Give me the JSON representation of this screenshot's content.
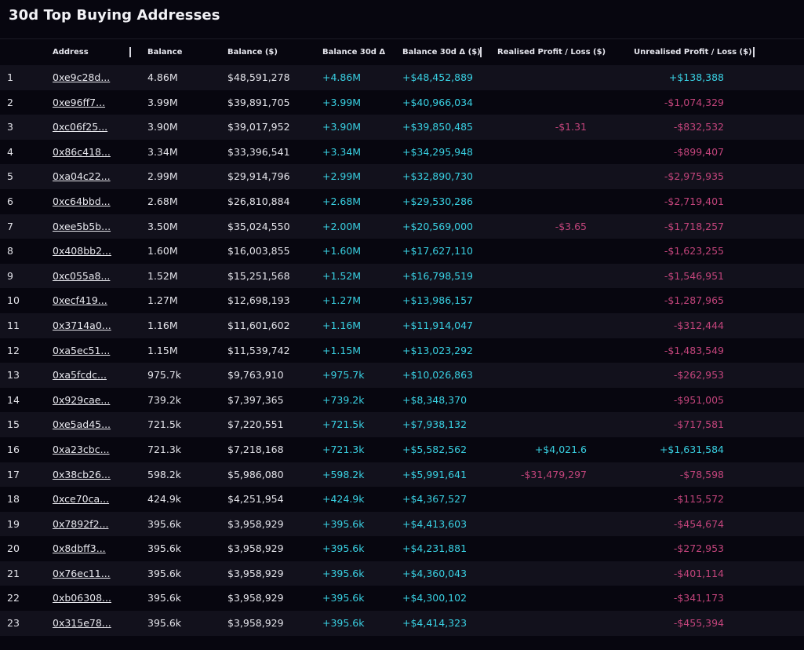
{
  "title": "30d Top Buying Addresses",
  "columns": {
    "address": "Address",
    "balance": "Balance",
    "balance_usd": "Balance ($)",
    "balance_30d": "Balance 30d Δ",
    "balance_30d_usd": "Balance 30d Δ ($)",
    "realised": "Realised Profit / Loss ($)",
    "unrealised": "Unrealised Profit / Loss ($)"
  },
  "colors": {
    "positive": "#39d1e3",
    "negative": "#c2447b",
    "background": "#07060f",
    "row_alt": "#12111c"
  },
  "rows": [
    {
      "idx": "1",
      "address": "0xe9c28d...",
      "balance": "4.86M",
      "balance_usd": "$48,591,278",
      "d30": "+4.86M",
      "d30_usd": "+$48,452,889",
      "realised": "",
      "unrealised": "+$138,388"
    },
    {
      "idx": "2",
      "address": "0xe96ff7...",
      "balance": "3.99M",
      "balance_usd": "$39,891,705",
      "d30": "+3.99M",
      "d30_usd": "+$40,966,034",
      "realised": "",
      "unrealised": "-$1,074,329"
    },
    {
      "idx": "3",
      "address": "0xc06f25...",
      "balance": "3.90M",
      "balance_usd": "$39,017,952",
      "d30": "+3.90M",
      "d30_usd": "+$39,850,485",
      "realised": "-$1.31",
      "unrealised": "-$832,532"
    },
    {
      "idx": "4",
      "address": "0x86c418...",
      "balance": "3.34M",
      "balance_usd": "$33,396,541",
      "d30": "+3.34M",
      "d30_usd": "+$34,295,948",
      "realised": "",
      "unrealised": "-$899,407"
    },
    {
      "idx": "5",
      "address": "0xa04c22...",
      "balance": "2.99M",
      "balance_usd": "$29,914,796",
      "d30": "+2.99M",
      "d30_usd": "+$32,890,730",
      "realised": "",
      "unrealised": "-$2,975,935"
    },
    {
      "idx": "6",
      "address": "0xc64bbd...",
      "balance": "2.68M",
      "balance_usd": "$26,810,884",
      "d30": "+2.68M",
      "d30_usd": "+$29,530,286",
      "realised": "",
      "unrealised": "-$2,719,401"
    },
    {
      "idx": "7",
      "address": "0xee5b5b...",
      "balance": "3.50M",
      "balance_usd": "$35,024,550",
      "d30": "+2.00M",
      "d30_usd": "+$20,569,000",
      "realised": "-$3.65",
      "unrealised": "-$1,718,257"
    },
    {
      "idx": "8",
      "address": "0x408bb2...",
      "balance": "1.60M",
      "balance_usd": "$16,003,855",
      "d30": "+1.60M",
      "d30_usd": "+$17,627,110",
      "realised": "",
      "unrealised": "-$1,623,255"
    },
    {
      "idx": "9",
      "address": "0xc055a8...",
      "balance": "1.52M",
      "balance_usd": "$15,251,568",
      "d30": "+1.52M",
      "d30_usd": "+$16,798,519",
      "realised": "",
      "unrealised": "-$1,546,951"
    },
    {
      "idx": "10",
      "address": "0xecf419...",
      "balance": "1.27M",
      "balance_usd": "$12,698,193",
      "d30": "+1.27M",
      "d30_usd": "+$13,986,157",
      "realised": "",
      "unrealised": "-$1,287,965"
    },
    {
      "idx": "11",
      "address": "0x3714a0...",
      "balance": "1.16M",
      "balance_usd": "$11,601,602",
      "d30": "+1.16M",
      "d30_usd": "+$11,914,047",
      "realised": "",
      "unrealised": "-$312,444"
    },
    {
      "idx": "12",
      "address": "0xa5ec51...",
      "balance": "1.15M",
      "balance_usd": "$11,539,742",
      "d30": "+1.15M",
      "d30_usd": "+$13,023,292",
      "realised": "",
      "unrealised": "-$1,483,549"
    },
    {
      "idx": "13",
      "address": "0xa5fcdc...",
      "balance": "975.7k",
      "balance_usd": "$9,763,910",
      "d30": "+975.7k",
      "d30_usd": "+$10,026,863",
      "realised": "",
      "unrealised": "-$262,953"
    },
    {
      "idx": "14",
      "address": "0x929cae...",
      "balance": "739.2k",
      "balance_usd": "$7,397,365",
      "d30": "+739.2k",
      "d30_usd": "+$8,348,370",
      "realised": "",
      "unrealised": "-$951,005"
    },
    {
      "idx": "15",
      "address": "0xe5ad45...",
      "balance": "721.5k",
      "balance_usd": "$7,220,551",
      "d30": "+721.5k",
      "d30_usd": "+$7,938,132",
      "realised": "",
      "unrealised": "-$717,581"
    },
    {
      "idx": "16",
      "address": "0xa23cbc...",
      "balance": "721.3k",
      "balance_usd": "$7,218,168",
      "d30": "+721.3k",
      "d30_usd": "+$5,582,562",
      "realised": "+$4,021.6",
      "unrealised": "+$1,631,584"
    },
    {
      "idx": "17",
      "address": "0x38cb26...",
      "balance": "598.2k",
      "balance_usd": "$5,986,080",
      "d30": "+598.2k",
      "d30_usd": "+$5,991,641",
      "realised": "-$31,479,297",
      "unrealised": "-$78,598"
    },
    {
      "idx": "18",
      "address": "0xce70ca...",
      "balance": "424.9k",
      "balance_usd": "$4,251,954",
      "d30": "+424.9k",
      "d30_usd": "+$4,367,527",
      "realised": "",
      "unrealised": "-$115,572"
    },
    {
      "idx": "19",
      "address": "0x7892f2...",
      "balance": "395.6k",
      "balance_usd": "$3,958,929",
      "d30": "+395.6k",
      "d30_usd": "+$4,413,603",
      "realised": "",
      "unrealised": "-$454,674"
    },
    {
      "idx": "20",
      "address": "0x8dbff3...",
      "balance": "395.6k",
      "balance_usd": "$3,958,929",
      "d30": "+395.6k",
      "d30_usd": "+$4,231,881",
      "realised": "",
      "unrealised": "-$272,953"
    },
    {
      "idx": "21",
      "address": "0x76ec11...",
      "balance": "395.6k",
      "balance_usd": "$3,958,929",
      "d30": "+395.6k",
      "d30_usd": "+$4,360,043",
      "realised": "",
      "unrealised": "-$401,114"
    },
    {
      "idx": "22",
      "address": "0xb06308...",
      "balance": "395.6k",
      "balance_usd": "$3,958,929",
      "d30": "+395.6k",
      "d30_usd": "+$4,300,102",
      "realised": "",
      "unrealised": "-$341,173"
    },
    {
      "idx": "23",
      "address": "0x315e78...",
      "balance": "395.6k",
      "balance_usd": "$3,958,929",
      "d30": "+395.6k",
      "d30_usd": "+$4,414,323",
      "realised": "",
      "unrealised": "-$455,394"
    }
  ]
}
